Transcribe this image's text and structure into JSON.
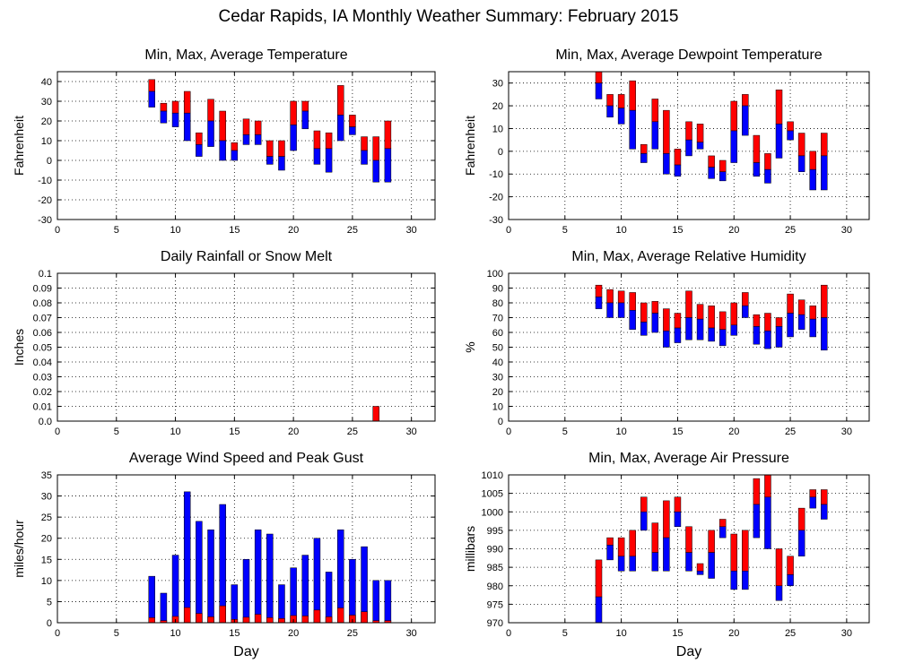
{
  "title": "Cedar Rapids, IA Monthly Weather Summary: February 2015",
  "colors": {
    "max_bar": "#ff0000",
    "min_bar": "#0000ff",
    "frame": "#000000",
    "grid": "#000000"
  },
  "chart_data": [
    {
      "type": "bar",
      "title": "Min, Max, Average Temperature",
      "xlabel": "",
      "ylabel": "Fahrenheit",
      "xlim": [
        0,
        32
      ],
      "ylim": [
        -30,
        45
      ],
      "xticks": [
        0,
        5,
        10,
        15,
        20,
        25,
        30
      ],
      "yticks": [
        -30,
        -20,
        -10,
        0,
        10,
        20,
        30,
        40
      ],
      "grid": true,
      "days": [
        8,
        9,
        10,
        11,
        12,
        13,
        14,
        15,
        16,
        17,
        18,
        19,
        20,
        21,
        22,
        23,
        24,
        25,
        26,
        27,
        28
      ],
      "max": [
        41,
        29,
        30,
        35,
        14,
        31,
        25,
        9,
        21,
        20,
        10,
        10,
        30,
        30,
        15,
        14,
        38,
        23,
        12,
        12,
        20
      ],
      "avg": [
        35,
        25,
        24,
        24,
        8,
        20,
        10,
        5,
        13,
        13,
        2,
        2,
        18,
        25,
        6,
        6,
        23,
        17,
        5,
        0,
        6
      ],
      "min": [
        27,
        19,
        17,
        10,
        2,
        7,
        0,
        0,
        8,
        8,
        -2,
        -5,
        5,
        16,
        -2,
        -6,
        10,
        13,
        -2,
        -11,
        -11
      ]
    },
    {
      "type": "bar",
      "title": "Min, Max, Average Dewpoint Temperature",
      "xlabel": "",
      "ylabel": "Fahrenheit",
      "xlim": [
        0,
        32
      ],
      "ylim": [
        -30,
        35
      ],
      "xticks": [
        0,
        5,
        10,
        15,
        20,
        25,
        30
      ],
      "yticks": [
        -30,
        -20,
        -10,
        0,
        10,
        20,
        30
      ],
      "grid": true,
      "days": [
        8,
        9,
        10,
        11,
        12,
        13,
        14,
        15,
        16,
        17,
        18,
        19,
        20,
        21,
        22,
        23,
        24,
        25,
        26,
        27,
        28
      ],
      "max": [
        36,
        25,
        25,
        31,
        3,
        23,
        18,
        1,
        13,
        12,
        -2,
        -4,
        22,
        25,
        7,
        -1,
        27,
        13,
        8,
        0,
        8
      ],
      "avg": [
        30,
        20,
        19,
        18,
        -1,
        13,
        -1,
        -6,
        5,
        4,
        -7,
        -9,
        9,
        20,
        -5,
        -8,
        12,
        9,
        -2,
        -8,
        -2
      ],
      "min": [
        23,
        15,
        12,
        1,
        -5,
        1,
        -10,
        -11,
        -2,
        1,
        -12,
        -13,
        -5,
        7,
        -11,
        -14,
        -3,
        5,
        -9,
        -17,
        -17
      ]
    },
    {
      "type": "bar",
      "title": "Daily Rainfall or Snow Melt",
      "xlabel": "",
      "ylabel": "Inches",
      "xlim": [
        0,
        32
      ],
      "ylim": [
        0,
        0.1
      ],
      "xticks": [
        0,
        5,
        10,
        15,
        20,
        25,
        30
      ],
      "yticks": [
        0,
        0.01,
        0.02,
        0.03,
        0.04,
        0.05,
        0.06,
        0.07,
        0.08,
        0.09,
        0.1
      ],
      "ytick_labels": [
        "0.0",
        "0.01",
        "0.02",
        "0.03",
        "0.04",
        "0.05",
        "0.06",
        "0.07",
        "0.08",
        "0.09",
        "0.1"
      ],
      "grid": true,
      "days": [
        27
      ],
      "values": [
        0.01
      ]
    },
    {
      "type": "bar",
      "title": "Min, Max, Average Relative Humidity",
      "xlabel": "",
      "ylabel": "%",
      "xlim": [
        0,
        32
      ],
      "ylim": [
        0,
        100
      ],
      "xticks": [
        0,
        5,
        10,
        15,
        20,
        25,
        30
      ],
      "yticks": [
        0,
        10,
        20,
        30,
        40,
        50,
        60,
        70,
        80,
        90,
        100
      ],
      "grid": true,
      "days": [
        8,
        9,
        10,
        11,
        12,
        13,
        14,
        15,
        16,
        17,
        18,
        19,
        20,
        21,
        22,
        23,
        24,
        25,
        26,
        27,
        28
      ],
      "max": [
        92,
        89,
        88,
        87,
        80,
        81,
        76,
        73,
        88,
        79,
        78,
        74,
        80,
        87,
        72,
        73,
        70,
        86,
        82,
        78,
        92
      ],
      "avg": [
        84,
        80,
        80,
        75,
        67,
        73,
        61,
        63,
        70,
        69,
        63,
        62,
        65,
        78,
        64,
        61,
        64,
        73,
        72,
        69,
        70
      ],
      "min": [
        76,
        70,
        70,
        62,
        58,
        60,
        50,
        53,
        55,
        55,
        54,
        51,
        58,
        70,
        52,
        49,
        50,
        57,
        62,
        57,
        48
      ]
    },
    {
      "type": "bar",
      "title": "Average Wind Speed and Peak Gust",
      "xlabel": "Day",
      "ylabel": "miles/hour",
      "xlim": [
        0,
        32
      ],
      "ylim": [
        0,
        35
      ],
      "xticks": [
        0,
        5,
        10,
        15,
        20,
        25,
        30
      ],
      "yticks": [
        0,
        5,
        10,
        15,
        20,
        25,
        30,
        35
      ],
      "grid": true,
      "days": [
        8,
        9,
        10,
        11,
        12,
        13,
        14,
        15,
        16,
        17,
        18,
        19,
        20,
        21,
        22,
        23,
        24,
        25,
        26,
        27,
        28
      ],
      "series": [
        {
          "name": "Peak Gust",
          "values": [
            11,
            7,
            16,
            31,
            24,
            22,
            28,
            9,
            15,
            22,
            21,
            9,
            13,
            16,
            20,
            12,
            22,
            15,
            18,
            10,
            10
          ]
        },
        {
          "name": "Average Wind Speed",
          "values": [
            1.2,
            0.5,
            1.5,
            3.6,
            2.2,
            1.4,
            4.0,
            0.8,
            1.3,
            2.0,
            1.2,
            1.0,
            1.7,
            1.6,
            3.0,
            1.4,
            3.5,
            1.8,
            2.6,
            0.5,
            0.5
          ]
        }
      ]
    },
    {
      "type": "bar",
      "title": "Min, Max, Average Air Pressure",
      "xlabel": "Day",
      "ylabel": "millibars",
      "xlim": [
        0,
        32
      ],
      "ylim": [
        970,
        1010
      ],
      "xticks": [
        0,
        5,
        10,
        15,
        20,
        25,
        30
      ],
      "yticks": [
        970,
        975,
        980,
        985,
        990,
        995,
        1000,
        1005,
        1010
      ],
      "grid": true,
      "days": [
        8,
        9,
        10,
        11,
        12,
        13,
        14,
        15,
        16,
        17,
        18,
        19,
        20,
        21,
        22,
        23,
        24,
        25,
        26,
        27,
        28
      ],
      "max": [
        987,
        993,
        993,
        995,
        1004,
        997,
        1003,
        1004,
        996,
        986,
        995,
        998,
        994,
        995,
        1009,
        1011,
        990,
        988,
        1001,
        1006,
        1006
      ],
      "avg": [
        977,
        991,
        988,
        988,
        1000,
        989,
        993,
        1000,
        989,
        984,
        989,
        996,
        984,
        984,
        1002,
        1004,
        980,
        983,
        995,
        1004,
        1002
      ],
      "min": [
        970,
        987,
        984,
        984,
        995,
        984,
        984,
        996,
        984,
        983,
        982,
        993,
        979,
        979,
        993,
        990,
        976,
        980,
        988,
        1001,
        998
      ]
    }
  ]
}
